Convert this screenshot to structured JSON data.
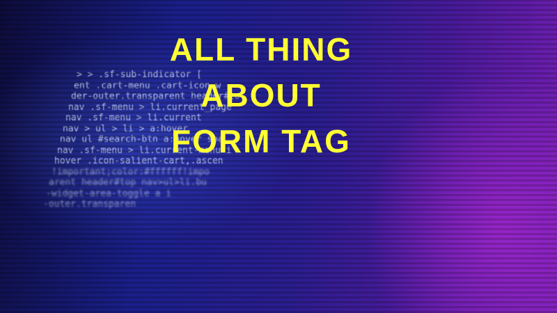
{
  "title_lines": [
    "ALL THING",
    "ABOUT",
    "FORM TAG"
  ],
  "background_code": [
    "> > .sf-sub-indicator [",
    "ent .cart-menu .cart-icon-w",
    "der-outer.transparent header#to",
    "nav .sf-menu > li.current_page",
    "nav .sf-menu > li.current",
    "nav > ul > li > a:hover",
    "nav ul #search-btn a:hover spa",
    "nav .sf-menu > li.current-menu-i",
    "hover .icon-salient-cart,.ascen",
    "!important;color:#ffffff!impo",
    "arent header#top nav>ul>li.bu",
    "-widget-area-toggle a i",
    "-outer.transparen"
  ]
}
